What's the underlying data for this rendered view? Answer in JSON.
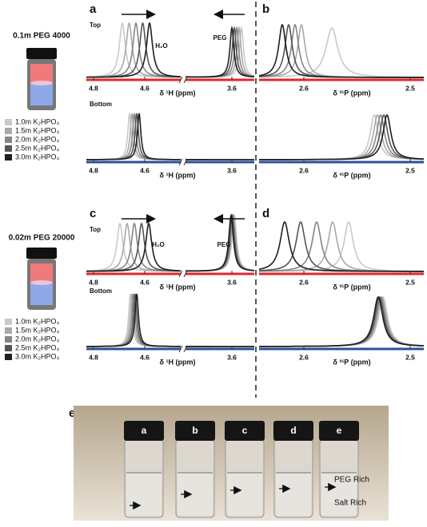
{
  "groups": [
    {
      "title": "0.1m PEG 4000",
      "legend": [
        "1.0m K₂HPO₄",
        "1.5m K₂HPO₄",
        "2.0m K₂HPO₄",
        "2.5m K₂HPO₄",
        "3.0m K₂HPO₄"
      ]
    },
    {
      "title": "0.02m PEG 20000",
      "legend": [
        "1.0m K₂HPO₄",
        "1.5m K₂HPO₄",
        "2.0m K₂HPO₄",
        "2.5m K₂HPO₄",
        "3.0m K₂HPO₄"
      ]
    }
  ],
  "panels": [
    {
      "label": "a",
      "top": {
        "label": "Top",
        "ticks": [
          "4.8",
          "4.6",
          "3.6"
        ],
        "axis_label": "δ ¹H (ppm)",
        "annotations": [
          "H₂O",
          "PEG"
        ]
      },
      "bottom": {
        "label": "Bottom",
        "ticks": [
          "4.8",
          "4.6",
          "3.6"
        ],
        "axis_label": "δ ¹H (ppm)"
      }
    },
    {
      "label": "b",
      "top": {
        "ticks": [
          "2.6",
          "2.5"
        ],
        "axis_label": "δ ³¹P (ppm)"
      },
      "bottom": {
        "ticks": [
          "2.6",
          "2.5"
        ],
        "axis_label": "δ ³¹P (ppm)"
      }
    },
    {
      "label": "c",
      "top": {
        "label": "Top",
        "ticks": [
          "4.8",
          "4.6",
          "3.6"
        ],
        "axis_label": "δ ¹H (ppm)",
        "annotations": [
          "H₂O",
          "PEG"
        ]
      },
      "bottom": {
        "label": "Bottom",
        "ticks": [
          "4.8",
          "4.6",
          "3.6"
        ],
        "axis_label": "δ ¹H (ppm)"
      }
    },
    {
      "label": "d",
      "top": {
        "ticks": [
          "2.6",
          "2.5"
        ],
        "axis_label": "δ ³¹P (ppm)"
      },
      "bottom": {
        "ticks": [
          "2.6",
          "2.5"
        ],
        "axis_label": "δ ³¹P (ppm)"
      }
    }
  ],
  "photo": {
    "label": "e",
    "vials": [
      "a",
      "b",
      "c",
      "d",
      "e"
    ],
    "phases": [
      "PEG Rich",
      "Salt Rich"
    ]
  }
}
